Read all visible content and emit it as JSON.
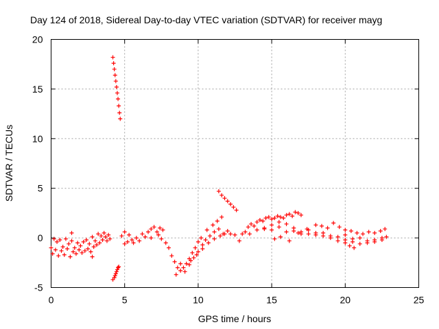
{
  "chart_data": {
    "type": "scatter",
    "title": "Day 124 of 2018, Sidereal Day-to-day VTEC variation (SDTVAR) for receiver mayg",
    "xlabel": "GPS time / hours",
    "ylabel": "SDTVAR / TECUs",
    "xlim": [
      0,
      25
    ],
    "ylim": [
      -5,
      20
    ],
    "xticks": [
      0,
      5,
      10,
      15,
      20,
      25
    ],
    "yticks": [
      -5,
      0,
      5,
      10,
      15,
      20
    ],
    "xtick_labels": [
      "0",
      "5",
      "10",
      "15",
      "20",
      "25"
    ],
    "ytick_labels": [
      "-5",
      "0",
      "5",
      "10",
      "15",
      "20"
    ],
    "grid": true,
    "marker": "plus",
    "color": "#ff0000",
    "series": [
      {
        "name": "SDTVAR",
        "points": [
          [
            0.0,
            -1.0
          ],
          [
            0.1,
            -1.6
          ],
          [
            0.2,
            -0.1
          ],
          [
            0.3,
            -1.2
          ],
          [
            0.4,
            -0.4
          ],
          [
            0.5,
            -1.8
          ],
          [
            0.6,
            -0.2
          ],
          [
            0.7,
            -1.3
          ],
          [
            0.8,
            -0.9
          ],
          [
            0.9,
            -1.7
          ],
          [
            1.0,
            -0.1
          ],
          [
            1.1,
            -1.1
          ],
          [
            1.2,
            -0.6
          ],
          [
            1.3,
            -1.9
          ],
          [
            1.4,
            -0.3
          ],
          [
            1.5,
            -1.4
          ],
          [
            1.6,
            -1.0
          ],
          [
            1.7,
            -1.6
          ],
          [
            1.8,
            -0.5
          ],
          [
            1.9,
            -1.2
          ],
          [
            2.0,
            -0.8
          ],
          [
            2.1,
            -1.5
          ],
          [
            2.2,
            -0.4
          ],
          [
            2.3,
            -1.3
          ],
          [
            2.4,
            -0.2
          ],
          [
            2.5,
            -1.1
          ],
          [
            2.6,
            -0.6
          ],
          [
            2.7,
            -1.4
          ],
          [
            2.8,
            0.1
          ],
          [
            2.9,
            -0.9
          ],
          [
            3.0,
            -0.3
          ],
          [
            3.1,
            -0.7
          ],
          [
            3.2,
            0.4
          ],
          [
            3.3,
            -0.5
          ],
          [
            3.4,
            0.2
          ],
          [
            3.5,
            -0.2
          ],
          [
            3.6,
            0.5
          ],
          [
            3.7,
            0.1
          ],
          [
            3.8,
            -0.3
          ],
          [
            3.9,
            0.3
          ],
          [
            4.0,
            -0.1
          ],
          [
            1.4,
            0.5
          ],
          [
            2.8,
            -1.9
          ],
          [
            4.2,
            18.2
          ],
          [
            4.25,
            17.6
          ],
          [
            4.3,
            17.0
          ],
          [
            4.35,
            16.4
          ],
          [
            4.4,
            15.8
          ],
          [
            4.45,
            15.2
          ],
          [
            4.5,
            14.6
          ],
          [
            4.55,
            14.0
          ],
          [
            4.6,
            13.3
          ],
          [
            4.65,
            12.6
          ],
          [
            4.7,
            12.0
          ],
          [
            4.2,
            -4.2
          ],
          [
            4.3,
            -4.0
          ],
          [
            4.35,
            -3.8
          ],
          [
            4.4,
            -3.6
          ],
          [
            4.45,
            -3.4
          ],
          [
            4.5,
            -3.2
          ],
          [
            4.55,
            -3.0
          ],
          [
            4.6,
            -2.9
          ],
          [
            4.8,
            0.2
          ],
          [
            5.0,
            0.6
          ],
          [
            5.2,
            -0.4
          ],
          [
            5.3,
            0.3
          ],
          [
            5.5,
            -0.2
          ],
          [
            5.6,
            -0.5
          ],
          [
            5.8,
            0.0
          ],
          [
            6.0,
            -0.3
          ],
          [
            6.2,
            0.4
          ],
          [
            6.4,
            0.1
          ],
          [
            6.6,
            0.6
          ],
          [
            6.8,
            0.9
          ],
          [
            7.0,
            1.1
          ],
          [
            7.2,
            0.6
          ],
          [
            7.3,
            0.3
          ],
          [
            7.5,
            -0.1
          ],
          [
            7.6,
            0.8
          ],
          [
            7.8,
            -0.5
          ],
          [
            5.0,
            -0.6
          ],
          [
            6.8,
            0.0
          ],
          [
            7.4,
            1.0
          ],
          [
            8.0,
            -1.0
          ],
          [
            8.2,
            -1.8
          ],
          [
            8.4,
            -2.4
          ],
          [
            8.6,
            -3.0
          ],
          [
            8.8,
            -3.3
          ],
          [
            9.0,
            -3.0
          ],
          [
            9.2,
            -2.6
          ],
          [
            9.4,
            -2.1
          ],
          [
            9.6,
            -1.5
          ],
          [
            9.8,
            -1.0
          ],
          [
            10.0,
            -0.4
          ],
          [
            10.2,
            0.0
          ],
          [
            8.5,
            -3.7
          ],
          [
            8.8,
            -2.6
          ],
          [
            9.1,
            -3.4
          ],
          [
            9.4,
            -2.7
          ],
          [
            9.7,
            -2.0
          ],
          [
            10.0,
            -1.4
          ],
          [
            10.3,
            -0.7
          ],
          [
            10.5,
            -0.2
          ],
          [
            10.8,
            0.2
          ],
          [
            11.1,
            0.6
          ],
          [
            11.4,
            0.9
          ],
          [
            11.7,
            0.4
          ],
          [
            9.5,
            -2.3
          ],
          [
            9.9,
            -1.7
          ],
          [
            10.3,
            -1.1
          ],
          [
            10.7,
            -0.5
          ],
          [
            11.1,
            -0.1
          ],
          [
            11.5,
            0.2
          ],
          [
            10.6,
            0.8
          ],
          [
            11.0,
            1.3
          ],
          [
            11.3,
            1.7
          ],
          [
            11.6,
            2.1
          ],
          [
            11.4,
            4.7
          ],
          [
            11.6,
            4.3
          ],
          [
            11.8,
            4.0
          ],
          [
            12.0,
            3.7
          ],
          [
            12.2,
            3.4
          ],
          [
            12.4,
            3.1
          ],
          [
            12.6,
            2.8
          ],
          [
            11.8,
            0.4
          ],
          [
            12.0,
            0.7
          ],
          [
            12.2,
            0.4
          ],
          [
            12.5,
            0.3
          ],
          [
            12.8,
            -0.3
          ],
          [
            13.0,
            0.4
          ],
          [
            13.2,
            0.6
          ],
          [
            13.4,
            1.1
          ],
          [
            13.6,
            1.4
          ],
          [
            13.8,
            1.2
          ],
          [
            14.0,
            1.6
          ],
          [
            14.2,
            1.8
          ],
          [
            14.4,
            1.7
          ],
          [
            14.6,
            2.0
          ],
          [
            14.8,
            2.1
          ],
          [
            15.0,
            1.9
          ],
          [
            15.2,
            2.0
          ],
          [
            15.4,
            2.2
          ],
          [
            15.6,
            2.1
          ],
          [
            15.8,
            2.0
          ],
          [
            16.0,
            2.3
          ],
          [
            16.2,
            2.4
          ],
          [
            16.4,
            2.2
          ],
          [
            16.6,
            2.6
          ],
          [
            16.8,
            2.5
          ],
          [
            17.0,
            2.3
          ],
          [
            13.5,
            0.4
          ],
          [
            14.0,
            0.8
          ],
          [
            14.5,
            1.0
          ],
          [
            15.0,
            0.8
          ],
          [
            15.5,
            1.1
          ],
          [
            16.0,
            0.6
          ],
          [
            16.5,
            0.7
          ],
          [
            17.0,
            0.4
          ],
          [
            17.5,
            0.8
          ],
          [
            18.0,
            0.5
          ],
          [
            18.5,
            0.2
          ],
          [
            19.0,
            0.0
          ],
          [
            19.5,
            -0.3
          ],
          [
            20.0,
            -0.5
          ],
          [
            20.3,
            -0.8
          ],
          [
            20.6,
            -1.0
          ],
          [
            14.5,
            0.9
          ],
          [
            15.0,
            1.3
          ],
          [
            15.5,
            1.6
          ],
          [
            16.0,
            1.4
          ],
          [
            16.5,
            1.0
          ],
          [
            17.0,
            0.6
          ],
          [
            17.5,
            0.4
          ],
          [
            18.0,
            0.3
          ],
          [
            18.5,
            0.5
          ],
          [
            19.0,
            0.2
          ],
          [
            19.5,
            0.1
          ],
          [
            20.0,
            0.3
          ],
          [
            20.5,
            -0.1
          ],
          [
            21.0,
            0.0
          ],
          [
            21.5,
            -0.3
          ],
          [
            22.0,
            -0.2
          ],
          [
            22.5,
            0.0
          ],
          [
            22.8,
            0.1
          ],
          [
            15.2,
            -0.1
          ],
          [
            15.6,
            0.1
          ],
          [
            16.2,
            -0.3
          ],
          [
            16.8,
            0.5
          ],
          [
            17.4,
            0.9
          ],
          [
            18.0,
            1.3
          ],
          [
            18.4,
            1.2
          ],
          [
            18.8,
            1.0
          ],
          [
            19.2,
            1.5
          ],
          [
            19.6,
            1.1
          ],
          [
            20.0,
            0.8
          ],
          [
            20.4,
            0.7
          ],
          [
            20.8,
            0.5
          ],
          [
            21.2,
            0.4
          ],
          [
            21.6,
            0.6
          ],
          [
            22.0,
            0.5
          ],
          [
            22.4,
            0.7
          ],
          [
            22.7,
            0.9
          ],
          [
            20.0,
            -0.2
          ],
          [
            20.5,
            -0.4
          ],
          [
            21.0,
            -0.6
          ],
          [
            21.5,
            -0.5
          ],
          [
            22.0,
            -0.4
          ],
          [
            22.5,
            -0.2
          ]
        ]
      }
    ]
  }
}
